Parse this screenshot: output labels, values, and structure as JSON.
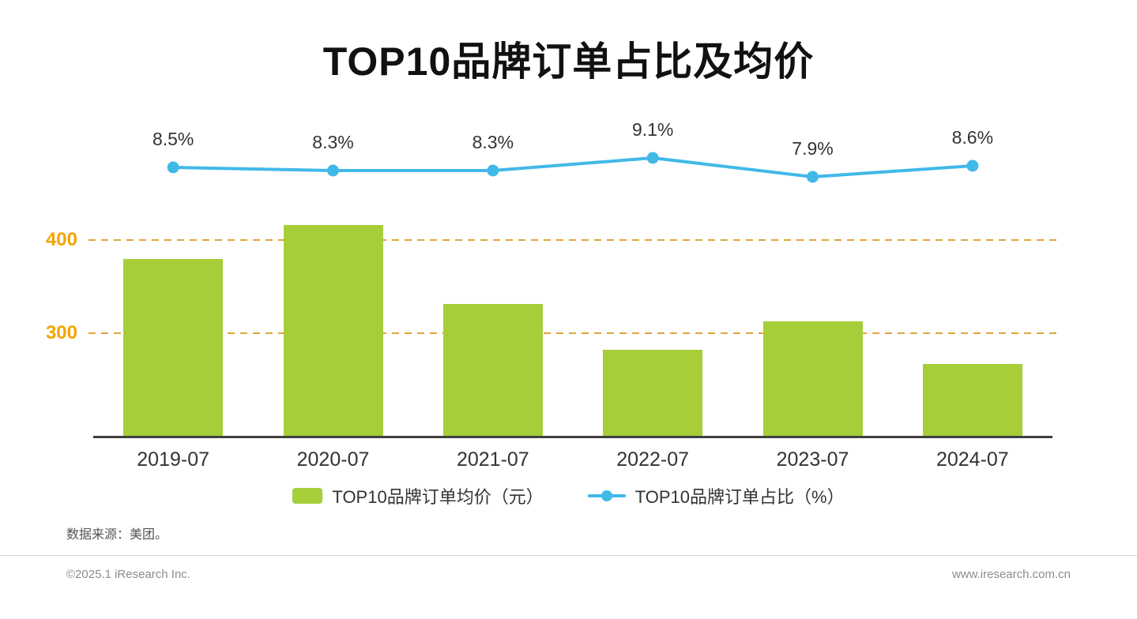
{
  "title": "TOP10品牌订单占比及均价",
  "source_note": "数据来源：美团。",
  "footer": {
    "left": "©2025.1 iResearch Inc.",
    "right": "www.iresearch.com.cn"
  },
  "legend": {
    "bar": "TOP10品牌订单均价（元）",
    "line": "TOP10品牌订单占比（%）"
  },
  "colors": {
    "bar": "#a6ce39",
    "line": "#41b9e8",
    "axis_label": "#f1a501",
    "gridline": "#e2a43b",
    "axis": "#404040",
    "text": "#333333"
  },
  "chart_data": {
    "type": "combo",
    "title": "TOP10品牌订单占比及均价",
    "categories": [
      "2019-07",
      "2020-07",
      "2021-07",
      "2022-07",
      "2023-07",
      "2024-07"
    ],
    "series": [
      {
        "name": "TOP10品牌订单均价（元）",
        "type": "bar",
        "unit": "元",
        "values": [
          380,
          416,
          331,
          282,
          313,
          267
        ]
      },
      {
        "name": "TOP10品牌订单占比（%）",
        "type": "line",
        "unit": "%",
        "values": [
          8.5,
          8.3,
          8.3,
          9.1,
          7.9,
          8.6
        ],
        "labels": [
          "8.5%",
          "8.3%",
          "8.3%",
          "9.1%",
          "7.9%",
          "8.6%"
        ]
      }
    ],
    "xlabel": "",
    "ylabel": "",
    "y_axis_ticks": [
      300,
      400
    ],
    "bar_ylim": [
      190,
      440
    ],
    "grid": "horizontal dashed orange lines at y=300 and y=400",
    "legend_position": "bottom"
  }
}
